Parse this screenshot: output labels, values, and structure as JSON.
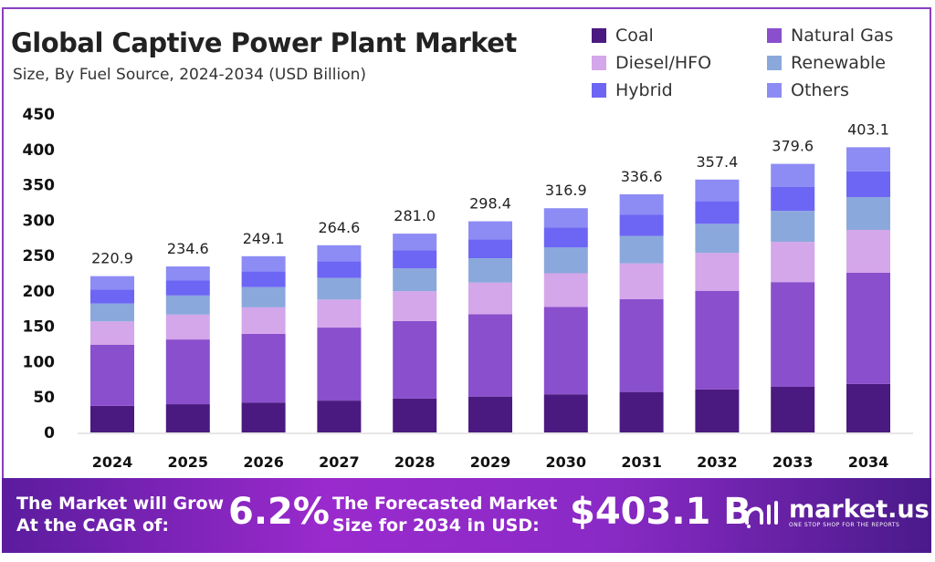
{
  "header": {
    "title": "Global Captive Power Plant Market",
    "subtitle": "Size, By Fuel Source, 2024-2034 (USD Billion)"
  },
  "chart_data": {
    "type": "bar",
    "stacked": true,
    "title": "Global Captive Power Plant Market",
    "subtitle": "Size, By Fuel Source, 2024-2034 (USD Billion)",
    "xlabel": "",
    "ylabel": "",
    "ylim": [
      0,
      450
    ],
    "yticks": [
      0,
      50,
      100,
      150,
      200,
      250,
      300,
      350,
      400,
      450
    ],
    "grid": false,
    "legend_position": "top-right",
    "categories": [
      "2024",
      "2025",
      "2026",
      "2027",
      "2028",
      "2029",
      "2030",
      "2031",
      "2032",
      "2033",
      "2034"
    ],
    "totals": [
      220.9,
      234.6,
      249.1,
      264.6,
      281.0,
      298.4,
      316.9,
      336.6,
      357.4,
      379.6,
      403.1
    ],
    "totals_labels": [
      "220.9",
      "234.6",
      "249.1",
      "264.6",
      "281.0",
      "298.4",
      "316.9",
      "336.6",
      "357.4",
      "379.6",
      "403.1"
    ],
    "series": [
      {
        "name": "Coal",
        "color": "#4b1a80",
        "values": [
          37.6,
          39.9,
          42.3,
          45.0,
          47.8,
          50.7,
          53.9,
          57.2,
          60.8,
          64.5,
          68.5
        ]
      },
      {
        "name": "Natural Gas",
        "color": "#8a4fcc",
        "values": [
          86.2,
          91.5,
          97.1,
          103.2,
          109.6,
          116.4,
          123.6,
          131.3,
          139.4,
          148.0,
          157.2
        ]
      },
      {
        "name": "Diesel/HFO",
        "color": "#d4a6ea",
        "values": [
          33.1,
          35.2,
          37.4,
          39.7,
          42.2,
          44.8,
          47.5,
          50.5,
          53.6,
          56.9,
          60.5
        ]
      },
      {
        "name": "Renewable",
        "color": "#8ba8dc",
        "values": [
          25.4,
          27.0,
          28.6,
          30.4,
          32.3,
          34.3,
          36.4,
          38.7,
          41.1,
          43.7,
          46.4
        ]
      },
      {
        "name": "Hybrid",
        "color": "#6d66f4",
        "values": [
          19.9,
          21.1,
          22.4,
          23.8,
          25.3,
          26.9,
          28.5,
          30.3,
          32.2,
          34.2,
          36.3
        ]
      },
      {
        "name": "Others",
        "color": "#8d8cf4",
        "values": [
          18.7,
          19.9,
          21.3,
          22.5,
          23.8,
          25.3,
          27.0,
          28.6,
          30.3,
          32.3,
          34.2
        ]
      }
    ]
  },
  "footer": {
    "cagr_label": "The Market will Grow At the CAGR of:",
    "cagr_line1": "The Market will Grow",
    "cagr_line2": "At the CAGR of:",
    "cagr_value": "6.2%",
    "forecast_line1": "The Forecasted Market",
    "forecast_line2": "Size for 2034 in USD:",
    "forecast_value": "$403.1 B",
    "logo_name": "market.us",
    "logo_tagline": "ONE STOP SHOP FOR THE REPORTS"
  }
}
